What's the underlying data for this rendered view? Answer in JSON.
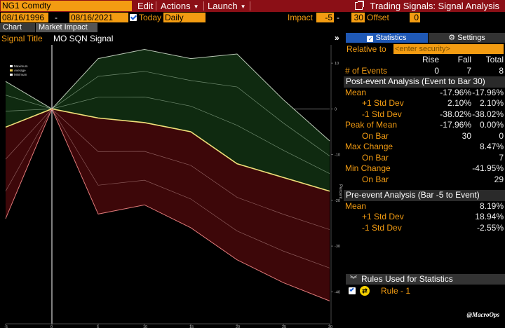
{
  "header": {
    "ticker": "NG1 Comdty",
    "menu": [
      {
        "label": "Edit",
        "has_arrow": false
      },
      {
        "label": "Actions",
        "has_arrow": true
      },
      {
        "label": "Launch",
        "has_arrow": true
      }
    ],
    "title": "Trading Signals: Signal Analysis"
  },
  "controls": {
    "start_date": "08/16/1996",
    "end_date": "08/16/2021",
    "date_sep": "-",
    "today_label": "Today",
    "frequency": "Daily",
    "impact_label": "Impact",
    "impact_from": "-5",
    "impact_sep": "-",
    "impact_to": "30",
    "offset_label": "Offset",
    "offset_value": "0"
  },
  "tabs": [
    {
      "label": "Chart",
      "active": false
    },
    {
      "label": "Market Impact",
      "active": true
    }
  ],
  "signal": {
    "label": "Signal Title",
    "value": "MO SQN Signal"
  },
  "legend": [
    "Maximum",
    "Average",
    "Minimum"
  ],
  "chart_data": {
    "type": "line",
    "title": "MO SQN Signal",
    "ylabel": "Percent",
    "x": [
      -5,
      0,
      5,
      10,
      15,
      20,
      25,
      30
    ],
    "xticks": [
      "-5",
      "0",
      "5",
      "10",
      "15",
      "20",
      "25",
      "30"
    ],
    "yticks": [
      "10",
      "0",
      "-10",
      "-20",
      "-30",
      "-40"
    ],
    "ylim": [
      -47,
      14
    ],
    "xlim": [
      -5,
      30
    ],
    "series": [
      {
        "name": "Maximum",
        "values": [
          6,
          0,
          11,
          13,
          11,
          12,
          2,
          -7
        ]
      },
      {
        "name": "Average",
        "values": [
          -4,
          0,
          -2,
          -3,
          -5,
          -12,
          -15,
          -18
        ]
      },
      {
        "name": "Minimum",
        "values": [
          -24,
          0,
          -23,
          -21,
          -26,
          -33,
          -38,
          -42
        ]
      }
    ]
  },
  "panel": {
    "tab_stats": "Statistics",
    "tab_settings": "Settings",
    "relative_label": "Relative to",
    "relative_placeholder": "<enter security>",
    "col_rise": "Rise",
    "col_fall": "Fall",
    "col_total": "Total",
    "events": {
      "label": "# of Events",
      "rise": "0",
      "fall": "7",
      "total": "8"
    },
    "post_header": "Post-event Analysis (Event to Bar 30)",
    "post_rows": [
      {
        "label": "Mean",
        "indent": false,
        "c1": "",
        "c2": "-17.96%",
        "c3": "-17.96%"
      },
      {
        "label": "+1 Std Dev",
        "indent": true,
        "c1": "",
        "c2": "2.10%",
        "c3": "2.10%"
      },
      {
        "label": "-1 Std Dev",
        "indent": true,
        "c1": "",
        "c2": "-38.02%",
        "c3": "-38.02%"
      },
      {
        "label": "Peak of Mean",
        "indent": false,
        "c1": "",
        "c2": "-17.96%",
        "c3": "0.00%"
      },
      {
        "label": "On Bar",
        "indent": true,
        "c1": "",
        "c2": "30",
        "c3": "0"
      },
      {
        "label": "Max Change",
        "indent": false,
        "c1": "",
        "c2": "",
        "c3": "8.47%"
      },
      {
        "label": "On Bar",
        "indent": true,
        "c1": "",
        "c2": "",
        "c3": "7"
      },
      {
        "label": "Min Change",
        "indent": false,
        "c1": "",
        "c2": "",
        "c3": "-41.95%"
      },
      {
        "label": "On Bar",
        "indent": true,
        "c1": "",
        "c2": "",
        "c3": "29"
      }
    ],
    "pre_header": "Pre-event Analysis (Bar -5 to Event)",
    "pre_rows": [
      {
        "label": "Mean",
        "indent": false,
        "c3": "8.19%"
      },
      {
        "label": "+1 Std Dev",
        "indent": true,
        "c3": "18.94%"
      },
      {
        "label": "-1 Std Dev",
        "indent": true,
        "c3": "-2.55%"
      }
    ],
    "rules_header": "Rules Used for Statistics",
    "rule_label": "Rule - 1"
  },
  "watermark": "@MacroOps",
  "colors": {
    "accent": "#f39c12",
    "header_bg": "#8b0f16",
    "tab_blue": "#1f58b5",
    "green_fill": "#0f2a10",
    "red_fill": "#3d0709",
    "average_line": "#f0e07a"
  }
}
